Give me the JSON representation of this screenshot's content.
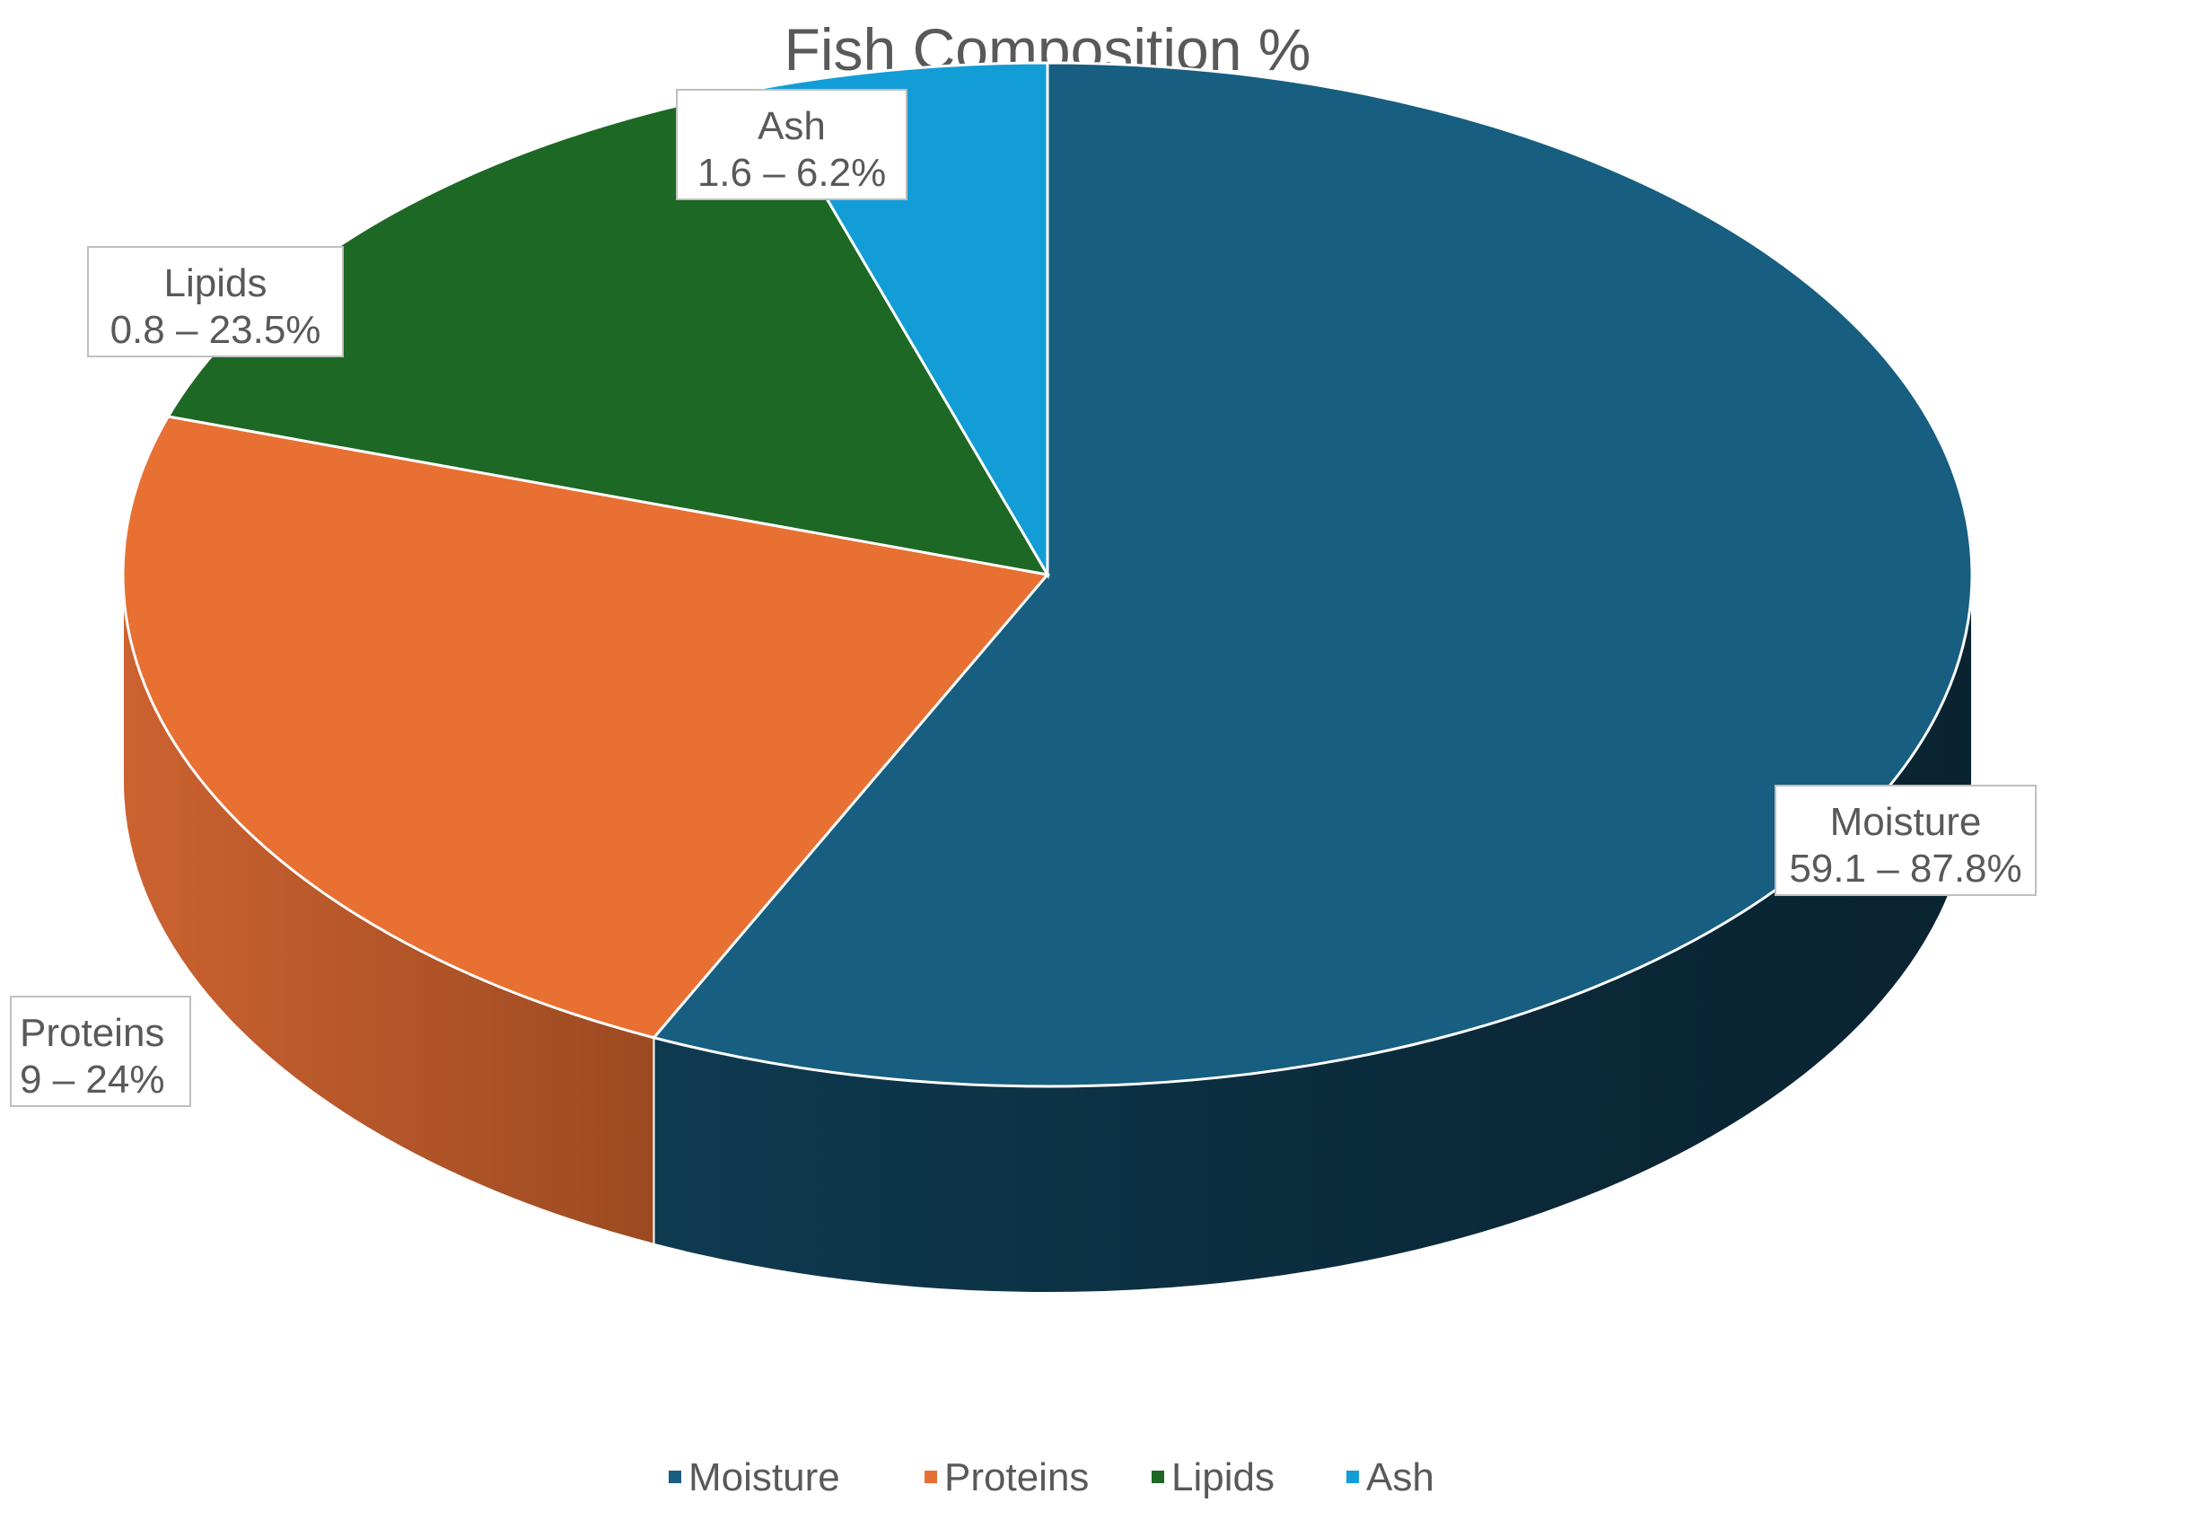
{
  "chart_data": {
    "type": "pie",
    "title": "Fish Composition %",
    "categories": [
      "Moisture",
      "Proteins",
      "Lipids",
      "Ash"
    ],
    "values": [
      57,
      23,
      15,
      5
    ],
    "labels": [
      {
        "name": "Moisture",
        "range": "59.1 – 87.8%"
      },
      {
        "name": "Proteins",
        "range": "9 – 24%"
      },
      {
        "name": "Lipids",
        "range": "0.8 – 23.5%"
      },
      {
        "name": "Ash",
        "range": "1.6 – 6.2%"
      }
    ],
    "colors": [
      "#175E80",
      "#E87033",
      "#1D6825",
      "#139DD6"
    ],
    "legend_position": "bottom",
    "style": "3d"
  }
}
